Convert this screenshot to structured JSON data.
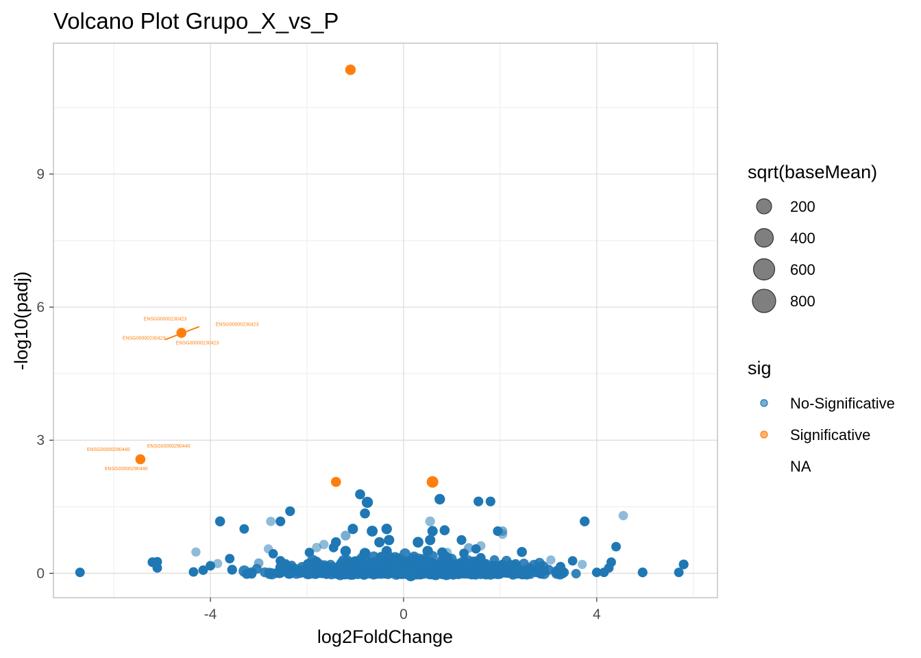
{
  "chart_data": {
    "type": "scatter",
    "title": "Volcano Plot Grupo_X_vs_P",
    "xlabel": "log2FoldChange",
    "ylabel": "-log10(padj)",
    "xlim": [
      -7.25,
      6.5
    ],
    "ylim": [
      -0.55,
      11.95
    ],
    "x_ticks": [
      -4,
      0,
      4
    ],
    "x_tick_labels": [
      "-4",
      "0",
      "4"
    ],
    "y_ticks": [
      0,
      3,
      6,
      9
    ],
    "y_tick_labels": [
      "0",
      "3",
      "6",
      "9"
    ],
    "grid": true,
    "colors": {
      "No-Significative": "#1f77b4",
      "Significative": "#ff7f0e",
      "grid_major": "#d9d9d9",
      "grid_minor": "#ebebeb",
      "panel_border": "#b3b3b3"
    },
    "legend": {
      "placement": "right",
      "size_title": "sqrt(baseMean)",
      "size_entries": [
        {
          "label": "200",
          "value": 200
        },
        {
          "label": "400",
          "value": 400
        },
        {
          "label": "600",
          "value": 600
        },
        {
          "label": "800",
          "value": 800
        }
      ],
      "color_title": "sig",
      "color_entries": [
        {
          "label": "No-Significative",
          "group": "No-Significative"
        },
        {
          "label": "Significative",
          "group": "Significative"
        },
        {
          "label": "NA",
          "group": "NA"
        }
      ]
    },
    "series": [
      {
        "name": "Significative",
        "points": [
          {
            "x": -1.1,
            "y": 11.35,
            "s": 250
          },
          {
            "x": -4.6,
            "y": 5.42,
            "s": 200
          },
          {
            "x": -5.45,
            "y": 2.57,
            "s": 200
          },
          {
            "x": -1.4,
            "y": 2.06,
            "s": 200
          },
          {
            "x": 0.6,
            "y": 2.06,
            "s": 400
          }
        ]
      },
      {
        "name": "No-Significative",
        "points": [
          {
            "x": -6.7,
            "y": 0.02,
            "s": 150
          },
          {
            "x": -5.2,
            "y": 0.25,
            "s": 170
          },
          {
            "x": -5.1,
            "y": 0.26,
            "s": 150
          },
          {
            "x": -5.1,
            "y": 0.12,
            "s": 150
          },
          {
            "x": -4.3,
            "y": 0.48,
            "s": 120,
            "a": 0.5
          },
          {
            "x": -4.35,
            "y": 0.03,
            "s": 150
          },
          {
            "x": -4.15,
            "y": 0.07,
            "s": 150
          },
          {
            "x": -4.0,
            "y": 0.17,
            "s": 150
          },
          {
            "x": -3.85,
            "y": 0.22,
            "s": 120,
            "a": 0.5
          },
          {
            "x": -3.8,
            "y": 1.17,
            "s": 200
          },
          {
            "x": -3.6,
            "y": 0.33,
            "s": 150
          },
          {
            "x": -3.55,
            "y": 0.08,
            "s": 180
          },
          {
            "x": -3.3,
            "y": 1.0,
            "s": 150
          },
          {
            "x": -3.2,
            "y": 0.0,
            "s": 200,
            "a": 0.5
          },
          {
            "x": -3.0,
            "y": 0.23,
            "s": 150,
            "a": 0.6
          },
          {
            "x": -2.8,
            "y": 0.55,
            "s": 120,
            "a": 0.5
          },
          {
            "x": -2.75,
            "y": 1.17,
            "s": 140,
            "a": 0.5
          },
          {
            "x": -2.55,
            "y": 1.17,
            "s": 170
          },
          {
            "x": -2.7,
            "y": 0.44,
            "s": 140
          },
          {
            "x": -2.55,
            "y": 0.28,
            "s": 160
          },
          {
            "x": -2.35,
            "y": 1.4,
            "s": 170
          },
          {
            "x": -2.1,
            "y": 0.03,
            "s": 200
          },
          {
            "x": -1.95,
            "y": 0.47,
            "s": 140
          },
          {
            "x": -1.8,
            "y": 0.58,
            "s": 140,
            "a": 0.5
          },
          {
            "x": -1.65,
            "y": 0.65,
            "s": 140,
            "a": 0.5
          },
          {
            "x": -1.45,
            "y": 0.58,
            "s": 150
          },
          {
            "x": -1.4,
            "y": 0.7,
            "s": 200
          },
          {
            "x": -1.2,
            "y": 0.85,
            "s": 180,
            "a": 0.6
          },
          {
            "x": -1.2,
            "y": 0.5,
            "s": 250
          },
          {
            "x": -1.05,
            "y": 1.0,
            "s": 230
          },
          {
            "x": -0.9,
            "y": 1.78,
            "s": 200
          },
          {
            "x": -0.75,
            "y": 1.6,
            "s": 330
          },
          {
            "x": -0.8,
            "y": 1.35,
            "s": 200
          },
          {
            "x": -0.65,
            "y": 0.95,
            "s": 300
          },
          {
            "x": -0.8,
            "y": 0.45,
            "s": 300
          },
          {
            "x": -0.5,
            "y": 0.7,
            "s": 230
          },
          {
            "x": -0.35,
            "y": 1.0,
            "s": 250
          },
          {
            "x": -0.3,
            "y": 0.75,
            "s": 230
          },
          {
            "x": -0.35,
            "y": 0.5,
            "s": 230
          },
          {
            "x": -0.55,
            "y": 0.25,
            "s": 250
          },
          {
            "x": -0.2,
            "y": 0.15,
            "s": 300
          },
          {
            "x": -0.05,
            "y": 0.05,
            "s": 350
          },
          {
            "x": 0.15,
            "y": -0.05,
            "s": 380
          },
          {
            "x": 0.35,
            "y": 0.2,
            "s": 300
          },
          {
            "x": 0.3,
            "y": 0.7,
            "s": 280
          },
          {
            "x": 0.5,
            "y": 0.5,
            "s": 250
          },
          {
            "x": 0.55,
            "y": 1.17,
            "s": 180,
            "a": 0.5
          },
          {
            "x": 0.6,
            "y": 0.95,
            "s": 230
          },
          {
            "x": 0.55,
            "y": 0.75,
            "s": 230
          },
          {
            "x": 0.75,
            "y": 1.67,
            "s": 250
          },
          {
            "x": 0.85,
            "y": 0.97,
            "s": 200
          },
          {
            "x": 0.8,
            "y": 0.47,
            "s": 200
          },
          {
            "x": 0.9,
            "y": 0.47,
            "s": 140,
            "a": 0.5
          },
          {
            "x": 1.2,
            "y": 0.75,
            "s": 170
          },
          {
            "x": 1.25,
            "y": 0.45,
            "s": 140
          },
          {
            "x": 1.35,
            "y": 0.57,
            "s": 170,
            "a": 0.6
          },
          {
            "x": 1.55,
            "y": 1.62,
            "s": 170
          },
          {
            "x": 1.6,
            "y": 0.62,
            "s": 130,
            "a": 0.5
          },
          {
            "x": 1.5,
            "y": 0.55,
            "s": 140
          },
          {
            "x": 1.8,
            "y": 1.62,
            "s": 170
          },
          {
            "x": 1.95,
            "y": 0.95,
            "s": 160
          },
          {
            "x": 2.05,
            "y": 0.95,
            "s": 150,
            "a": 0.6
          },
          {
            "x": 2.05,
            "y": 0.88,
            "s": 140,
            "a": 0.5
          },
          {
            "x": 1.6,
            "y": 0.35,
            "s": 140
          },
          {
            "x": 2.45,
            "y": 0.48,
            "s": 200
          },
          {
            "x": 2.05,
            "y": 0.2,
            "s": 150
          },
          {
            "x": 2.8,
            "y": 0.05,
            "s": 150
          },
          {
            "x": 3.05,
            "y": 0.3,
            "s": 120,
            "a": 0.5
          },
          {
            "x": 3.25,
            "y": 0.15,
            "s": 150
          },
          {
            "x": 3.5,
            "y": 0.28,
            "s": 140
          },
          {
            "x": 3.75,
            "y": 1.17,
            "s": 180
          },
          {
            "x": 3.7,
            "y": 0.2,
            "s": 120,
            "a": 0.5
          },
          {
            "x": 4.0,
            "y": 0.02,
            "s": 150
          },
          {
            "x": 4.15,
            "y": 0.02,
            "s": 150
          },
          {
            "x": 4.3,
            "y": 0.25,
            "s": 150
          },
          {
            "x": 4.25,
            "y": 0.12,
            "s": 150
          },
          {
            "x": 4.4,
            "y": 0.6,
            "s": 150
          },
          {
            "x": 4.55,
            "y": 1.3,
            "s": 140,
            "a": 0.5
          },
          {
            "x": 4.95,
            "y": 0.02,
            "s": 170
          },
          {
            "x": 5.7,
            "y": 0.02,
            "s": 150
          },
          {
            "x": 5.8,
            "y": 0.2,
            "s": 170
          }
        ]
      }
    ],
    "annotations": [
      {
        "text": "ENSG00000230423",
        "x": -4.6,
        "y": 5.42
      },
      {
        "text": "ENSG00000230423",
        "x": -4.6,
        "y": 5.42
      },
      {
        "text": "ENSG00000230423",
        "x": -4.6,
        "y": 5.42
      },
      {
        "text": "ENSG00000230423",
        "x": -4.6,
        "y": 5.42
      },
      {
        "text": "ENSG00000290440",
        "x": -5.45,
        "y": 2.57
      },
      {
        "text": "ENSG00000290440",
        "x": -5.45,
        "y": 2.57
      },
      {
        "text": "ENSG00000290440",
        "x": -5.45,
        "y": 2.57
      }
    ]
  }
}
